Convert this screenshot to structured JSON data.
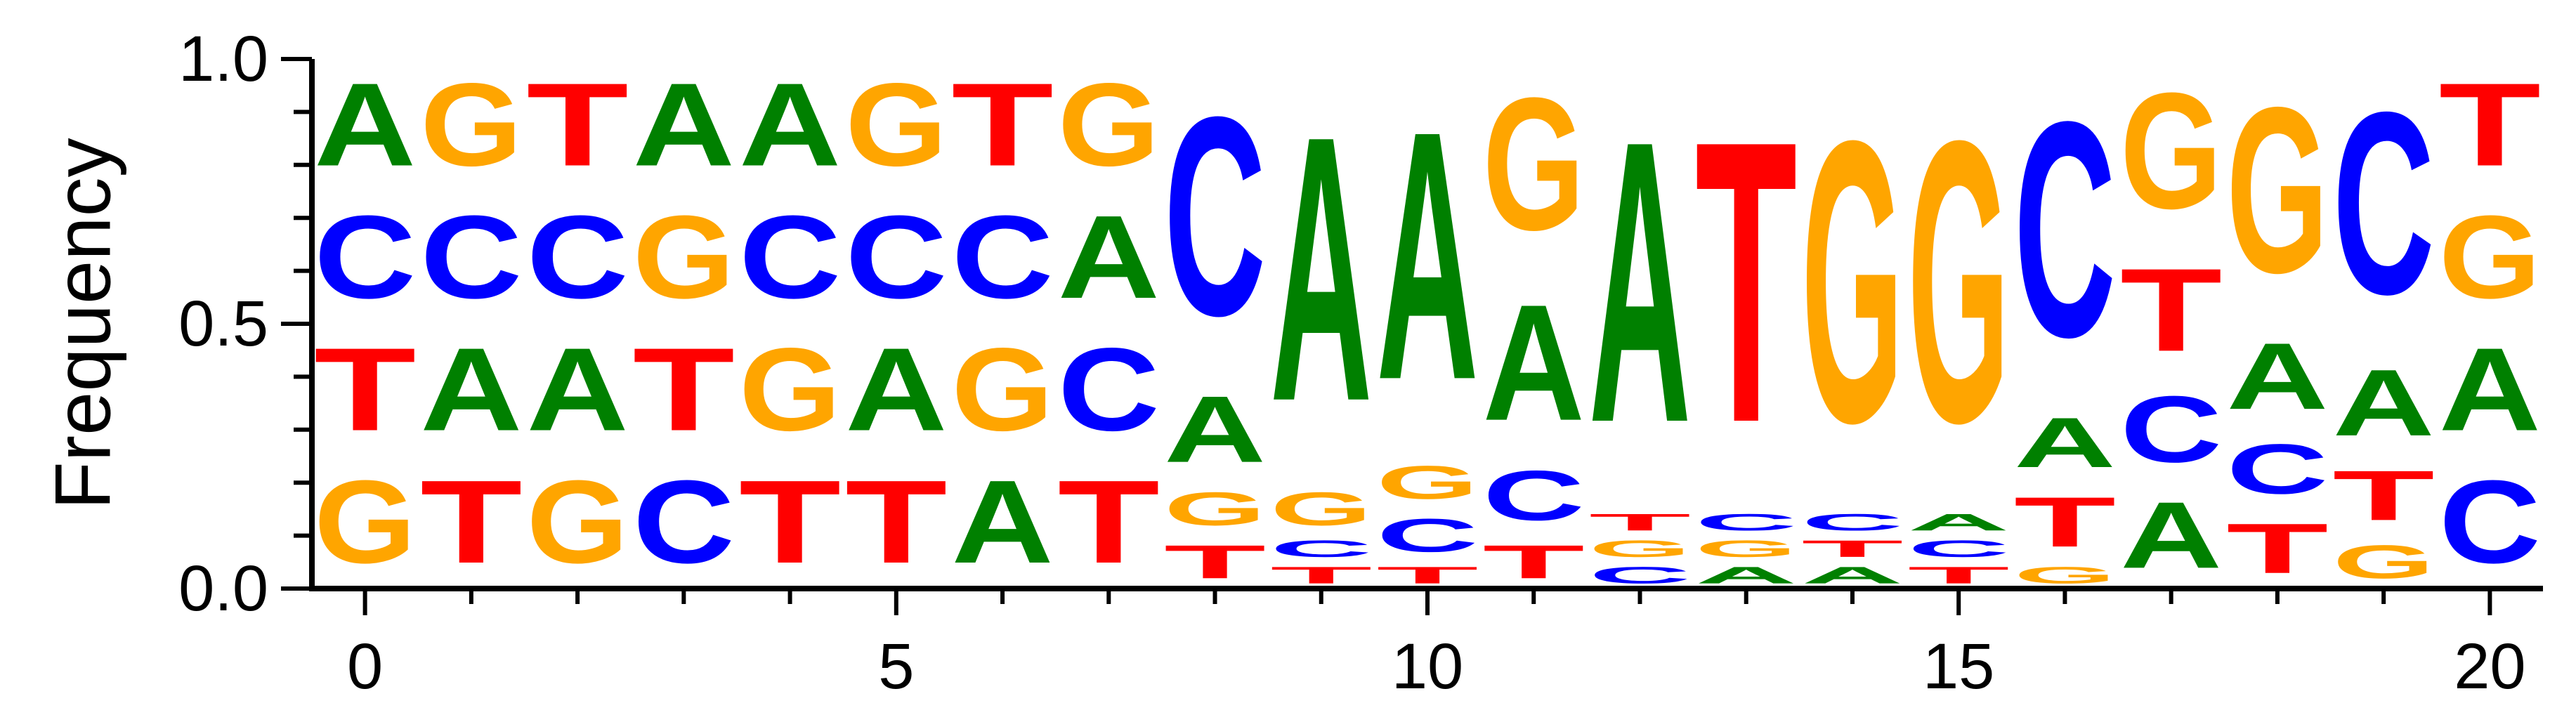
{
  "chart_data": {
    "type": "sequence-logo",
    "ylabel": "Frequency",
    "xlim": [
      -0.5,
      20.5
    ],
    "ylim": [
      0,
      1
    ],
    "x_ticks": [
      0,
      5,
      10,
      15,
      20
    ],
    "x_minor_ticks": [
      1,
      2,
      3,
      4,
      6,
      7,
      8,
      9,
      11,
      12,
      13,
      14,
      16,
      17,
      18,
      19
    ],
    "y_ticks": [
      0.0,
      0.5,
      1.0
    ],
    "y_tick_labels": [
      "0.0",
      "0.5",
      "1.0"
    ],
    "colors": {
      "A": "#008000",
      "C": "#0000ff",
      "G": "#ffa500",
      "T": "#ff0000"
    },
    "positions": [
      {
        "x": 0,
        "stack": [
          [
            "G",
            0.25
          ],
          [
            "T",
            0.25
          ],
          [
            "C",
            0.25
          ],
          [
            "A",
            0.25
          ]
        ]
      },
      {
        "x": 1,
        "stack": [
          [
            "T",
            0.25
          ],
          [
            "A",
            0.25
          ],
          [
            "C",
            0.25
          ],
          [
            "G",
            0.25
          ]
        ]
      },
      {
        "x": 2,
        "stack": [
          [
            "G",
            0.25
          ],
          [
            "A",
            0.25
          ],
          [
            "C",
            0.25
          ],
          [
            "T",
            0.25
          ]
        ]
      },
      {
        "x": 3,
        "stack": [
          [
            "C",
            0.25
          ],
          [
            "T",
            0.25
          ],
          [
            "G",
            0.25
          ],
          [
            "A",
            0.25
          ]
        ]
      },
      {
        "x": 4,
        "stack": [
          [
            "T",
            0.25
          ],
          [
            "G",
            0.25
          ],
          [
            "C",
            0.25
          ],
          [
            "A",
            0.25
          ]
        ]
      },
      {
        "x": 5,
        "stack": [
          [
            "T",
            0.25
          ],
          [
            "A",
            0.25
          ],
          [
            "C",
            0.25
          ],
          [
            "G",
            0.25
          ]
        ]
      },
      {
        "x": 6,
        "stack": [
          [
            "A",
            0.25
          ],
          [
            "G",
            0.25
          ],
          [
            "C",
            0.25
          ],
          [
            "T",
            0.25
          ]
        ]
      },
      {
        "x": 7,
        "stack": [
          [
            "T",
            0.25
          ],
          [
            "C",
            0.25
          ],
          [
            "A",
            0.25
          ],
          [
            "G",
            0.25
          ]
        ]
      },
      {
        "x": 8,
        "stack": [
          [
            "T",
            0.1
          ],
          [
            "G",
            0.1
          ],
          [
            "A",
            0.2
          ],
          [
            "C",
            0.6
          ]
        ]
      },
      {
        "x": 9,
        "stack": [
          [
            "T",
            0.05
          ],
          [
            "C",
            0.05
          ],
          [
            "G",
            0.1
          ],
          [
            "A",
            0.8
          ]
        ]
      },
      {
        "x": 10,
        "stack": [
          [
            "T",
            0.05
          ],
          [
            "C",
            0.1
          ],
          [
            "G",
            0.1
          ],
          [
            "A",
            0.75
          ]
        ]
      },
      {
        "x": 11,
        "stack": [
          [
            "T",
            0.1
          ],
          [
            "C",
            0.15
          ],
          [
            "A",
            0.35
          ],
          [
            "G",
            0.4
          ]
        ]
      },
      {
        "x": 12,
        "stack": [
          [
            "C",
            0.05
          ],
          [
            "G",
            0.05
          ],
          [
            "T",
            0.05
          ],
          [
            "A",
            0.85
          ]
        ]
      },
      {
        "x": 13,
        "stack": [
          [
            "A",
            0.05
          ],
          [
            "G",
            0.05
          ],
          [
            "C",
            0.05
          ],
          [
            "T",
            0.85
          ]
        ]
      },
      {
        "x": 14,
        "stack": [
          [
            "A",
            0.05
          ],
          [
            "T",
            0.05
          ],
          [
            "C",
            0.05
          ],
          [
            "G",
            0.85
          ]
        ]
      },
      {
        "x": 15,
        "stack": [
          [
            "T",
            0.05
          ],
          [
            "C",
            0.05
          ],
          [
            "A",
            0.05
          ],
          [
            "G",
            0.85
          ]
        ]
      },
      {
        "x": 16,
        "stack": [
          [
            "G",
            0.05
          ],
          [
            "T",
            0.15
          ],
          [
            "A",
            0.15
          ],
          [
            "C",
            0.65
          ]
        ]
      },
      {
        "x": 17,
        "stack": [
          [
            "A",
            0.2
          ],
          [
            "C",
            0.2
          ],
          [
            "T",
            0.25
          ],
          [
            "G",
            0.35
          ]
        ]
      },
      {
        "x": 18,
        "stack": [
          [
            "T",
            0.15
          ],
          [
            "C",
            0.15
          ],
          [
            "A",
            0.2
          ],
          [
            "G",
            0.5
          ]
        ]
      },
      {
        "x": 19,
        "stack": [
          [
            "G",
            0.1
          ],
          [
            "T",
            0.15
          ],
          [
            "A",
            0.2
          ],
          [
            "C",
            0.55
          ]
        ]
      },
      {
        "x": 20,
        "stack": [
          [
            "C",
            0.25
          ],
          [
            "A",
            0.25
          ],
          [
            "G",
            0.25
          ],
          [
            "T",
            0.25
          ]
        ]
      }
    ]
  }
}
